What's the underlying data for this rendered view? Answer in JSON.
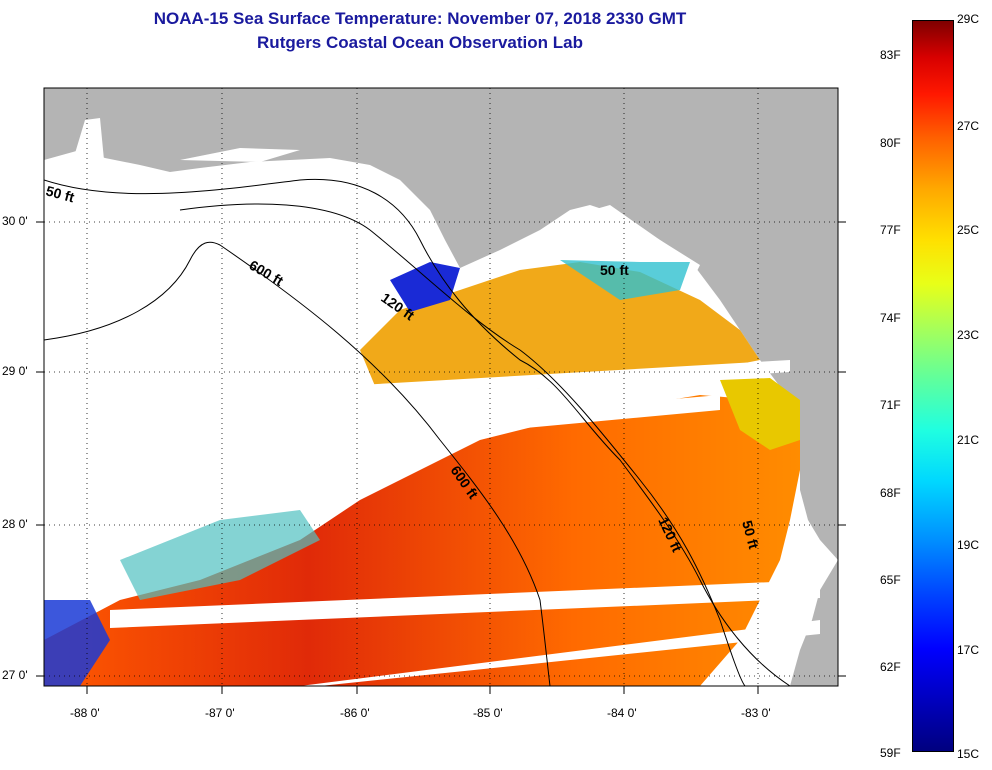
{
  "title_line1": "NOAA-15 Sea Surface Temperature:  November 07, 2018 2330 GMT",
  "title_line2": "Rutgers Coastal Ocean Observation Lab",
  "map": {
    "lon_labels": [
      "-88 0'",
      "-87 0'",
      "-86 0'",
      "-85 0'",
      "-84 0'",
      "-83 0'"
    ],
    "lat_labels": [
      "30 0'",
      "29 0'",
      "28 0'",
      "27 0'"
    ],
    "contour_labels": [
      "50 ft",
      "600 ft",
      "120 ft",
      "50 ft",
      "600 ft",
      "120 ft",
      "50 ft"
    ],
    "colors": {
      "land": "#b4b4b4",
      "cloud": "#ffffff",
      "warm": "#e83a10",
      "cool": "#1a3ad6"
    }
  },
  "colorbar": {
    "fahrenheit": [
      "83F",
      "80F",
      "77F",
      "74F",
      "71F",
      "68F",
      "65F",
      "62F",
      "59F"
    ],
    "celsius": [
      "29C",
      "27C",
      "25C",
      "23C",
      "21C",
      "19C",
      "17C",
      "15C"
    ],
    "min_c": 15,
    "max_c": 29,
    "min_f": 59,
    "max_f": 84
  }
}
